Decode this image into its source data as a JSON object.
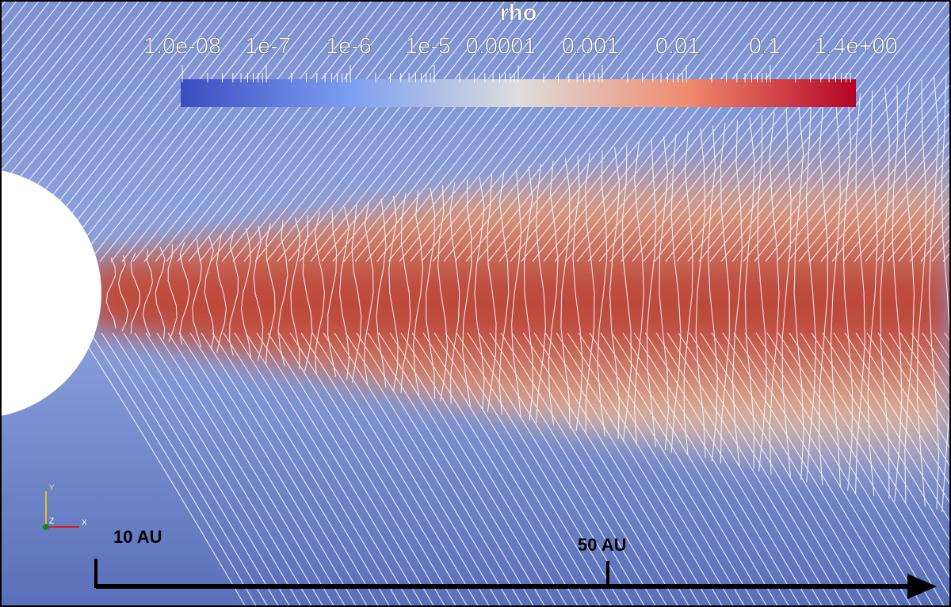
{
  "colorbar": {
    "title": "rho",
    "tick_labels": [
      "1.0e-08",
      "1e-7",
      "1e-6",
      "1e-5",
      "0.0001",
      "0.001",
      "0.01",
      "0.1",
      "1.4e+00"
    ]
  },
  "axes_triad": {
    "x": "X",
    "y": "Y",
    "z": "Z"
  },
  "scale_bar": {
    "labels": [
      "10 AU",
      "50 AU"
    ]
  }
}
